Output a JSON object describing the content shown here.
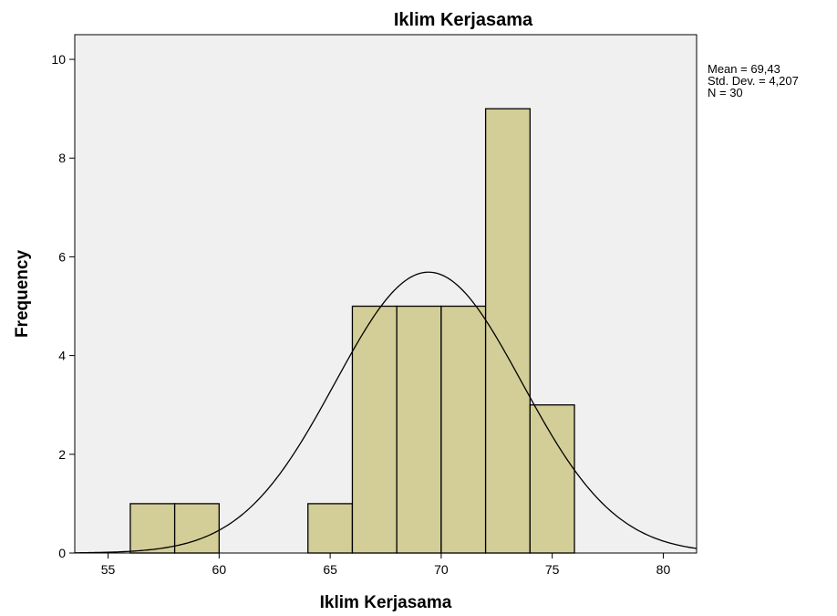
{
  "chart_data": {
    "type": "bar",
    "title": "Iklim Kerjasama",
    "xlabel": "Iklim Kerjasama",
    "ylabel": "Frequency",
    "xlim": [
      53.5,
      81.5
    ],
    "ylim": [
      0,
      10.5
    ],
    "x_ticks": [
      55,
      60,
      65,
      70,
      75,
      80
    ],
    "y_ticks": [
      0,
      2,
      4,
      6,
      8,
      10
    ],
    "bins": [
      {
        "start": 56,
        "end": 58,
        "count": 1
      },
      {
        "start": 58,
        "end": 60,
        "count": 1
      },
      {
        "start": 64,
        "end": 66,
        "count": 1
      },
      {
        "start": 66,
        "end": 68,
        "count": 5
      },
      {
        "start": 68,
        "end": 70,
        "count": 5
      },
      {
        "start": 70,
        "end": 72,
        "count": 5
      },
      {
        "start": 72,
        "end": 74,
        "count": 9
      },
      {
        "start": 74,
        "end": 76,
        "count": 3
      }
    ],
    "normal_curve": {
      "mean": 69.43,
      "std_dev": 4.207,
      "n": 30,
      "bin_width": 2
    },
    "stats_text": [
      "Mean = 69,43",
      "Std. Dev. = 4,207",
      "N = 30"
    ],
    "grid": false,
    "colors": {
      "bar_fill": "#d3ce97",
      "bar_stroke": "#000000",
      "plot_bg": "#f0f0f0",
      "curve": "#000000"
    }
  }
}
